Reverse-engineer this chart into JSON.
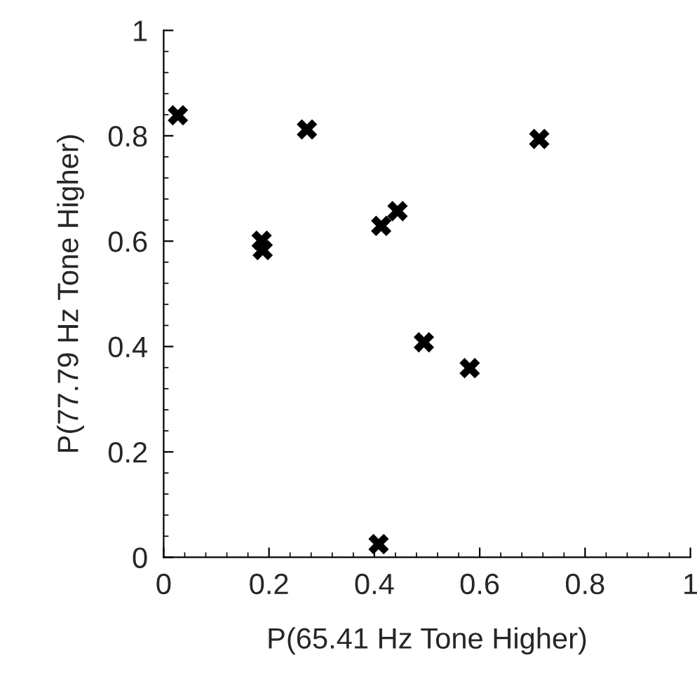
{
  "chart_data": {
    "type": "scatter",
    "xlabel": "P(65.41 Hz Tone Higher)",
    "ylabel": "P(77.79 Hz Tone Higher)",
    "x": [
      0.027,
      0.186,
      0.188,
      0.272,
      0.413,
      0.444,
      0.408,
      0.494,
      0.581,
      0.713
    ],
    "series": [
      {
        "color": "#000000",
        "values": [
          0.839,
          0.601,
          0.583,
          0.812,
          0.629,
          0.657,
          0.025,
          0.408,
          0.359,
          0.794
        ]
      }
    ],
    "xlim": [
      0,
      1
    ],
    "ylim": [
      0,
      1
    ],
    "xticks": [
      0,
      0.2,
      0.4,
      0.6,
      0.8,
      1
    ],
    "yticks": [
      0,
      0.2,
      0.4,
      0.6,
      0.8,
      1
    ],
    "marker": "cross",
    "grid": false,
    "legend": false
  }
}
